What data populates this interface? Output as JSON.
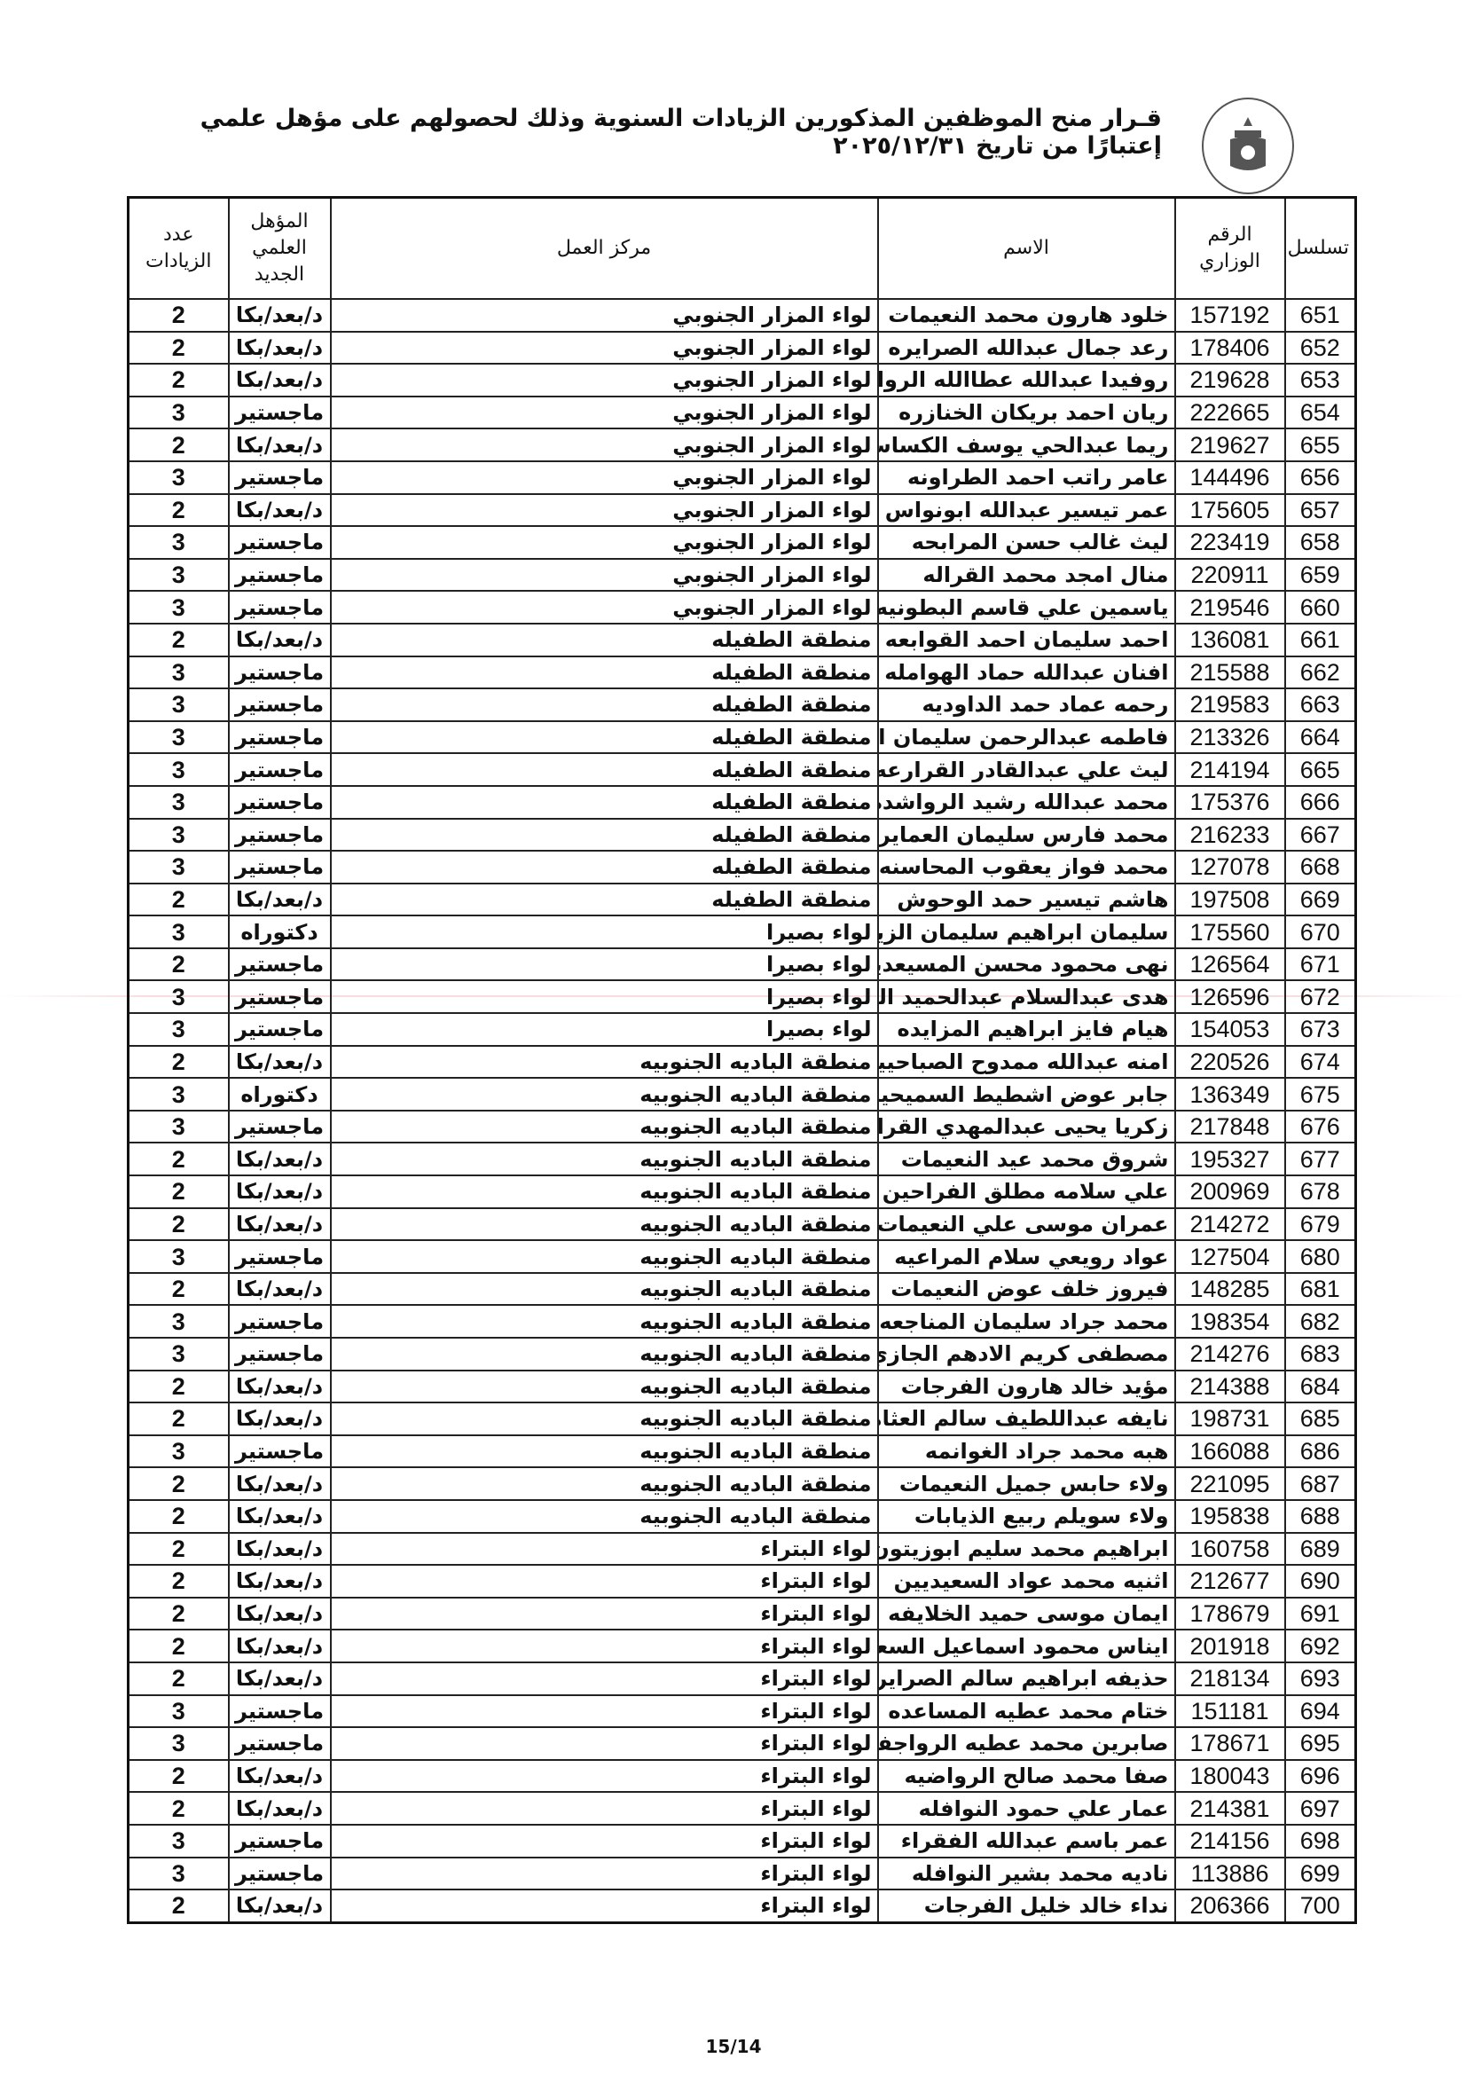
{
  "document": {
    "title": "قـرار منح الموظفين المذكورين الزيادات السنوية  وذلك لحصولهم على مؤهل علمي إعتبارًا من تاريخ ٢٠٢٥/١٢/٣١",
    "seal_icon": "ministry-of-education-emblem",
    "page_number": "15/14"
  },
  "table": {
    "headers": {
      "serial": "تسلسل",
      "ministry_id": "الرقم الوزاري",
      "name": "الاسم",
      "work_center": "مركز العمل",
      "qualification": "المؤهل العلمي الجديد",
      "increments": "عدد الزيادات"
    },
    "rows": [
      [
        "651",
        "157192",
        "خلود هارون محمد النعيمات",
        "لواء المزار الجنوبي",
        "د/بعد/بكا",
        "2"
      ],
      [
        "652",
        "178406",
        "رعد جمال عبدالله الصرايره",
        "لواء المزار الجنوبي",
        "د/بعد/بكا",
        "2"
      ],
      [
        "653",
        "219628",
        "روفيدا عبدالله عطاالله الرواشده",
        "لواء المزار الجنوبي",
        "د/بعد/بكا",
        "2"
      ],
      [
        "654",
        "222665",
        "ريان احمد بريكان الخنازره",
        "لواء المزار الجنوبي",
        "ماجستير",
        "3"
      ],
      [
        "655",
        "219627",
        "ريما عبدالحي يوسف الكساسبه",
        "لواء المزار الجنوبي",
        "د/بعد/بكا",
        "2"
      ],
      [
        "656",
        "144496",
        "عامر راتب احمد الطراونه",
        "لواء المزار الجنوبي",
        "ماجستير",
        "3"
      ],
      [
        "657",
        "175605",
        "عمر تيسير عبدالله ابونواس",
        "لواء المزار الجنوبي",
        "د/بعد/بكا",
        "2"
      ],
      [
        "658",
        "223419",
        "ليث غالب حسن المرابحه",
        "لواء المزار الجنوبي",
        "ماجستير",
        "3"
      ],
      [
        "659",
        "220911",
        "منال امجد محمد القراله",
        "لواء المزار الجنوبي",
        "ماجستير",
        "3"
      ],
      [
        "660",
        "219546",
        "ياسمين علي قاسم البطونيه",
        "لواء المزار الجنوبي",
        "ماجستير",
        "3"
      ],
      [
        "661",
        "136081",
        "احمد سليمان احمد القوابعه",
        "منطقة الطفيله",
        "د/بعد/بكا",
        "2"
      ],
      [
        "662",
        "215588",
        "افنان عبدالله حماد الهوامله",
        "منطقة الطفيله",
        "ماجستير",
        "3"
      ],
      [
        "663",
        "219583",
        "رحمه عماد حمد الداوديه",
        "منطقة الطفيله",
        "ماجستير",
        "3"
      ],
      [
        "664",
        "213326",
        "فاطمه عبدالرحمن سليمان القطامين",
        "منطقة الطفيله",
        "ماجستير",
        "3"
      ],
      [
        "665",
        "214194",
        "ليث علي عبدالقادر القرارعه",
        "منطقة الطفيله",
        "ماجستير",
        "3"
      ],
      [
        "666",
        "175376",
        "محمد عبدالله رشيد الرواشده",
        "منطقة الطفيله",
        "ماجستير",
        "3"
      ],
      [
        "667",
        "216233",
        "محمد فارس سليمان العمايره",
        "منطقة الطفيله",
        "ماجستير",
        "3"
      ],
      [
        "668",
        "127078",
        "محمد فواز يعقوب المحاسنه",
        "منطقة الطفيله",
        "ماجستير",
        "3"
      ],
      [
        "669",
        "197508",
        "هاشم تيسير حمد الوحوش",
        "منطقة الطفيله",
        "د/بعد/بكا",
        "2"
      ],
      [
        "670",
        "175560",
        "سليمان ابراهيم سليمان الزيدانين",
        "لواء بصيرا",
        "دكتوراه",
        "3"
      ],
      [
        "671",
        "126564",
        "نهى محمود محسن المسيعدين",
        "لواء بصيرا",
        "ماجستير",
        "2"
      ],
      [
        "672",
        "126596",
        "هدى عبدالسلام عبدالحميد الزيدانين",
        "لواء بصيرا",
        "ماجستير",
        "3"
      ],
      [
        "673",
        "154053",
        "هيام فايز ابراهيم المزايده",
        "لواء بصيرا",
        "ماجستير",
        "3"
      ],
      [
        "674",
        "220526",
        "امنه عبدالله ممدوح الصباحيين",
        "منطقة الباديه الجنوبيه",
        "د/بعد/بكا",
        "2"
      ],
      [
        "675",
        "136349",
        "جابر عوض اشطيط السميحيين",
        "منطقة الباديه الجنوبيه",
        "دكتوراه",
        "3"
      ],
      [
        "676",
        "217848",
        "زكريا يحيى عبدالمهدي القراله",
        "منطقة الباديه الجنوبيه",
        "ماجستير",
        "3"
      ],
      [
        "677",
        "195327",
        "شروق محمد عيد النعيمات",
        "منطقة الباديه الجنوبيه",
        "د/بعد/بكا",
        "2"
      ],
      [
        "678",
        "200969",
        "علي سلامه مطلق الفراحين",
        "منطقة الباديه الجنوبيه",
        "د/بعد/بكا",
        "2"
      ],
      [
        "679",
        "214272",
        "عمران موسى علي النعيمات",
        "منطقة الباديه الجنوبيه",
        "د/بعد/بكا",
        "2"
      ],
      [
        "680",
        "127504",
        "عواد رويعي سلام المراعيه",
        "منطقة الباديه الجنوبيه",
        "ماجستير",
        "3"
      ],
      [
        "681",
        "148285",
        "فيروز خلف عوض النعيمات",
        "منطقة الباديه الجنوبيه",
        "د/بعد/بكا",
        "2"
      ],
      [
        "682",
        "198354",
        "محمد جراد سليمان المناجعه",
        "منطقة الباديه الجنوبيه",
        "ماجستير",
        "3"
      ],
      [
        "683",
        "214276",
        "مصطفى كريم الادهم الجازي",
        "منطقة الباديه الجنوبيه",
        "ماجستير",
        "3"
      ],
      [
        "684",
        "214388",
        "مؤيد خالد هارون الفرجات",
        "منطقة الباديه الجنوبيه",
        "د/بعد/بكا",
        "2"
      ],
      [
        "685",
        "198731",
        "نايفه عبداللطيف سالم العثامنه",
        "منطقة الباديه الجنوبيه",
        "د/بعد/بكا",
        "2"
      ],
      [
        "686",
        "166088",
        "هبه محمد جراد الغوانمه",
        "منطقة الباديه الجنوبيه",
        "ماجستير",
        "3"
      ],
      [
        "687",
        "221095",
        "ولاء حابس جميل النعيمات",
        "منطقة الباديه الجنوبيه",
        "د/بعد/بكا",
        "2"
      ],
      [
        "688",
        "195838",
        "ولاء سويلم ربيع الذيابات",
        "منطقة الباديه الجنوبيه",
        "د/بعد/بكا",
        "2"
      ],
      [
        "689",
        "160758",
        "ابراهيم محمد سليم ابوزيتون",
        "لواء البتراء",
        "د/بعد/بكا",
        "2"
      ],
      [
        "690",
        "212677",
        "اثنيه محمد عواد السعيديين",
        "لواء البتراء",
        "د/بعد/بكا",
        "2"
      ],
      [
        "691",
        "178679",
        "ايمان موسى حميد الخلايفه",
        "لواء البتراء",
        "د/بعد/بكا",
        "2"
      ],
      [
        "692",
        "201918",
        "ايناس محمود اسماعيل السعيدات",
        "لواء البتراء",
        "د/بعد/بكا",
        "2"
      ],
      [
        "693",
        "218134",
        "حذيفه ابراهيم سالم الصرايره",
        "لواء البتراء",
        "د/بعد/بكا",
        "2"
      ],
      [
        "694",
        "151181",
        "ختام محمد عطيه المساعده",
        "لواء البتراء",
        "ماجستير",
        "3"
      ],
      [
        "695",
        "178671",
        "صابرين محمد عطيه الرواجفه",
        "لواء البتراء",
        "ماجستير",
        "3"
      ],
      [
        "696",
        "180043",
        "صفا محمد صالح الرواضيه",
        "لواء البتراء",
        "د/بعد/بكا",
        "2"
      ],
      [
        "697",
        "214381",
        "عمار علي حمود النوافله",
        "لواء البتراء",
        "د/بعد/بكا",
        "2"
      ],
      [
        "698",
        "214156",
        "عمر باسم عبدالله الفقراء",
        "لواء البتراء",
        "ماجستير",
        "3"
      ],
      [
        "699",
        "113886",
        "ناديه محمد بشير النوافله",
        "لواء البتراء",
        "ماجستير",
        "3"
      ],
      [
        "700",
        "206366",
        "نداء خالد خليل الفرجات",
        "لواء البتراء",
        "د/بعد/بكا",
        "2"
      ]
    ]
  }
}
